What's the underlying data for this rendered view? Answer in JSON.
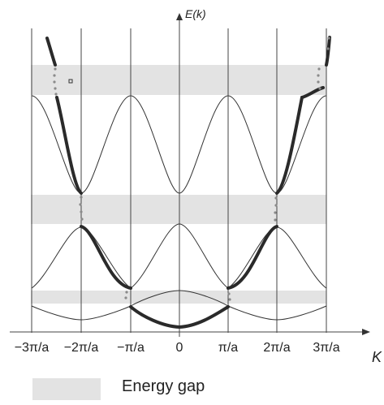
{
  "axis": {
    "y_label": "E(k)",
    "x_label": "K",
    "tick_labels": [
      "−3π/a",
      "−2π/a",
      "−π/a",
      "0",
      "π/a",
      "2π/a",
      "3π/a"
    ]
  },
  "legend": {
    "label": "Energy gap"
  },
  "colors": {
    "gap": "#e3e3e3",
    "thick_curve": "#2a2a2a",
    "thin_curve": "#333333",
    "dots": "#8a8a8a",
    "grid": "#444444"
  }
}
